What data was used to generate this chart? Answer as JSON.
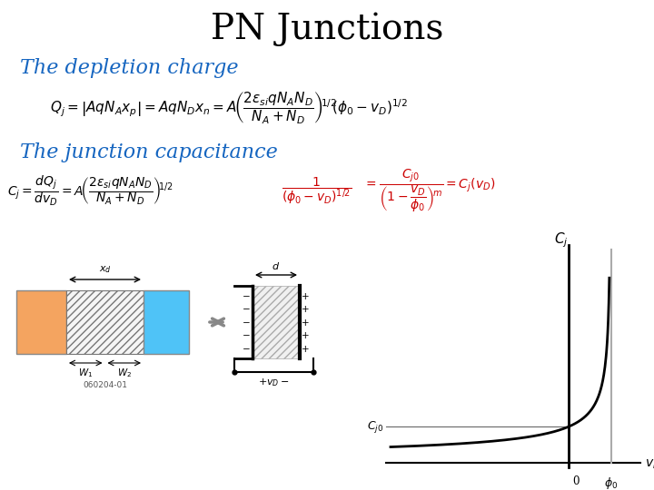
{
  "title": "PN Junctions",
  "title_fontsize": 28,
  "title_color": "#000000",
  "bg_color": "#ffffff",
  "section1_label": "The depletion charge",
  "section2_label": "The junction capacitance",
  "section_color": "#1565C0",
  "section_fontsize": 16,
  "orange_color": "#F4A460",
  "blue_color": "#4FC3F7",
  "graph_phi0": 0.6,
  "graph_Cj0": 1.0,
  "graph_m": 0.5
}
